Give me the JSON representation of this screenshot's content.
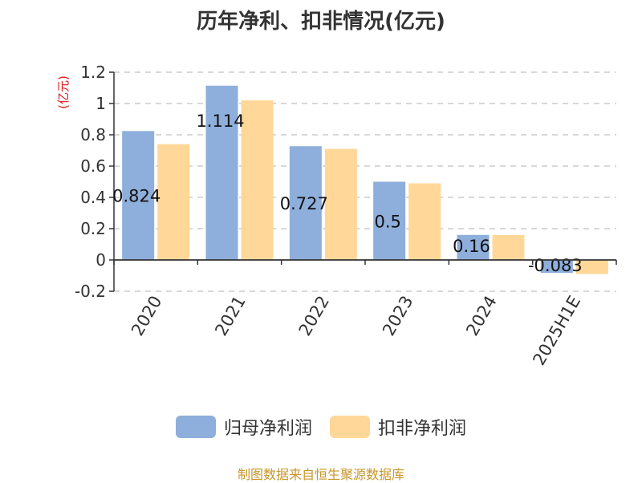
{
  "chart_data": {
    "type": "bar",
    "title": "历年净利、扣非情况(亿元)",
    "ylabel": "(亿元)",
    "xlabel": "",
    "categories": [
      "2020",
      "2021",
      "2022",
      "2023",
      "2024",
      "2025H1E"
    ],
    "series": [
      {
        "name": "归母净利润",
        "values": [
          0.824,
          1.114,
          0.727,
          0.5,
          0.16,
          -0.083
        ],
        "color": "#8eaedb"
      },
      {
        "name": "扣非净利润",
        "values": [
          0.74,
          1.02,
          0.71,
          0.49,
          0.16,
          -0.09
        ],
        "color": "#ffd899"
      }
    ],
    "data_labels": [
      "0.824",
      "1.114",
      "0.727",
      "0.5",
      "0.16",
      "-0.083"
    ],
    "ylim": [
      -0.2,
      1.2
    ],
    "yticks": [
      "-0.2",
      "0",
      "0.2",
      "0.4",
      "0.6",
      "0.8",
      "1",
      "1.2"
    ],
    "grid": true,
    "legend_position": "bottom",
    "source": "制图数据来自恒生聚源数据库",
    "colors": {
      "ylabel": "#e0161b",
      "source": "#c8962a",
      "grid": "#cccccc"
    }
  }
}
